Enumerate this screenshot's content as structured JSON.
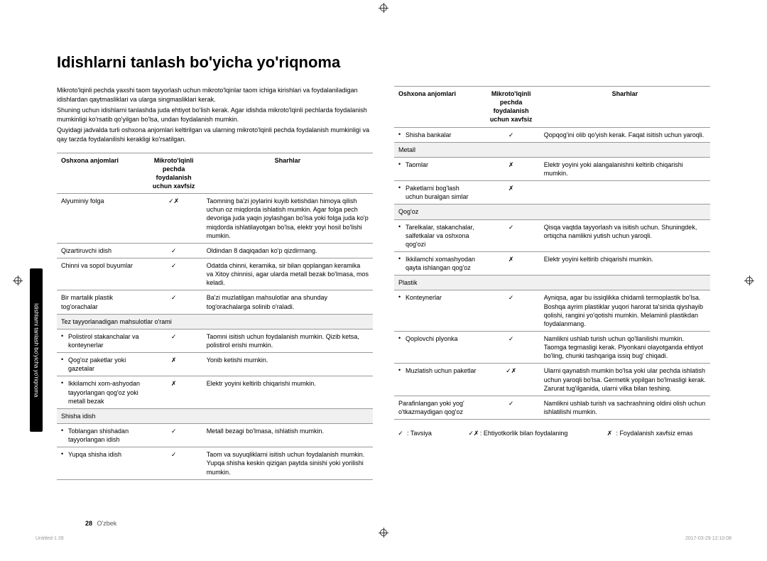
{
  "title": "Idishlarni tanlash bo'yicha yo'riqnoma",
  "sideTab": "Idishlarni tanlash bo'yicha yo'riqnoma",
  "intro": [
    "Mikroto'lqinli pechda yaxshi taom tayyorlash uchun mikroto'lqinlar taom ichiga kirishlari va foydalaniladigan idishlardan qaytmasliklari va ularga singmasliklari kerak.",
    "Shuning uchun idishlarni tanlashda juda ehtiyot bo'lish kerak. Agar idishda mikroto'lqinli pechlarda foydalanish mumkinligi ko'rsatib qo'yilgan bo'lsa, undan foydalanish mumkin.",
    "Quyidagi jadvalda turli oshxona anjomlari keltirilgan va ularning mikroto'lqinli pechda foydalanish mumkinligi va qay tarzda foydalanilishi kerakligi ko'rsatilgan."
  ],
  "headers": {
    "item": "Oshxona anjomlari",
    "safe": "Mikroto'lqinli pechda foydalanish uchun xavfsiz",
    "remarks": "Sharhlar"
  },
  "tableLeft": [
    {
      "item": "Alyuminiy folga",
      "safe": "✓✗",
      "remarks": "Taomning ba'zi joylarini kuyib ketishdan himoya qilish uchun oz miqdorda ishlatish mumkin. Agar folga pech devoriga juda yaqin joylashgan bo'lsa yoki folga juda ko'p miqdorda ishlatilayotgan bo'lsa, elektr yoyi hosil bo'lishi mumkin."
    },
    {
      "item": "Qizartiruvchi idish",
      "safe": "✓",
      "remarks": "Oldindan 8 daqiqadan ko'p qizdirmang."
    },
    {
      "item": "Chinni va sopol buyumlar",
      "safe": "✓",
      "remarks": "Odatda chinni, keramika, sir bilan qoplangan keramika va Xitoy chinnisi, agar ularda metall bezak bo'lmasa, mos keladi."
    },
    {
      "item": "Bir martalik plastik tog'orachalar",
      "safe": "✓",
      "remarks": "Ba'zi muzlatilgan mahsulotlar ana shunday tog'orachalarga solinib o'raladi."
    },
    {
      "section": "Tez tayyorlanadigan mahsulotlar o'rami"
    },
    {
      "item": "Polistirol stakanchalar va konteynerlar",
      "bullet": true,
      "safe": "✓",
      "remarks": "Taomni isitish uchun foydalanish mumkin. Qizib ketsa, polistirol erishi mumkin."
    },
    {
      "item": "Qog'oz paketlar yoki gazetalar",
      "bullet": true,
      "safe": "✗",
      "remarks": "Yonib ketishi mumkin."
    },
    {
      "item": "Ikkilamchi xom-ashyodan tayyorlangan qog'oz yoki metall bezak",
      "bullet": true,
      "safe": "✗",
      "remarks": "Elektr yoyini keltirib chiqarishi mumkin."
    },
    {
      "section": "Shisha idish"
    },
    {
      "item": "Toblangan shishadan tayyorlangan idish",
      "bullet": true,
      "safe": "✓",
      "remarks": "Metall bezagi bo'lmasa, ishlatish mumkin."
    },
    {
      "item": "Yupqa shisha idish",
      "bullet": true,
      "safe": "✓",
      "remarks": "Taom va suyuqliklarni isitish uchun foydalanish mumkin. Yupqa shisha keskin qizigan paytda sinishi yoki yorilishi mumkin."
    }
  ],
  "tableRight": [
    {
      "item": "Shisha bankalar",
      "bullet": true,
      "safe": "✓",
      "remarks": "Qopqog'ini olib qo'yish kerak. Faqat isitish uchun yaroqli."
    },
    {
      "section": "Metall"
    },
    {
      "item": "Taomlar",
      "bullet": true,
      "safe": "✗",
      "remarks": "Elektr yoyini yoki alangalanishni keltirib chiqarishi mumkin."
    },
    {
      "item": "Paketlarni bog'lash uchun buralgan simlar",
      "bullet": true,
      "safe": "✗",
      "remarks": ""
    },
    {
      "section": "Qog'oz"
    },
    {
      "item": "Tarelkalar, stakanchalar, salfetkalar va oshxona qog'ozi",
      "bullet": true,
      "safe": "✓",
      "remarks": "Qisqa vaqtda tayyorlash va isitish uchun. Shuningdek, ortiqcha namlikni yutish uchun yaroqli."
    },
    {
      "item": "Ikkilamchi xomashyodan qayta ishlangan qog'oz",
      "bullet": true,
      "safe": "✗",
      "remarks": "Elektr yoyini keltirib chiqarishi mumkin."
    },
    {
      "section": "Plastik"
    },
    {
      "item": "Konteynerlar",
      "bullet": true,
      "safe": "✓",
      "remarks": "Ayniqsa, agar bu issiqlikka chidamli termoplastik bo'lsa. Boshqa ayrim plastiklar yuqori harorat ta'sirida qiyshayib qolishi, rangini yo'qotishi mumkin. Melaminli plastikdan foydalanmang."
    },
    {
      "item": "Qoplovchi plyonka",
      "bullet": true,
      "safe": "✓",
      "remarks": "Namlikni ushlab turish uchun qo'llanilishi mumkin. Taomga tegmasligi kerak. Plyonkani olayotganda ehtiyot bo'ling, chunki tashqariga issiq bug' chiqadi."
    },
    {
      "item": "Muzlatish uchun paketlar",
      "bullet": true,
      "safe": "✓✗",
      "remarks": "Ularni qaynatish mumkin bo'lsa yoki ular pechda ishlatish uchun yaroqli bo'lsa. Germetik yopilgan bo'lmasligi kerak. Zarurat tug'ilganida, ularni vilka bilan teshing."
    },
    {
      "item": "Parafinlangan yoki yog' o'tkazmaydigan qog'oz",
      "safe": "✓",
      "remarks": "Namlikni ushlab turish va sachrashning oldini olish uchun ishlatilishi mumkin."
    }
  ],
  "legend": {
    "rec": ": Tavsiya",
    "care": ": Ehtiyotkorlik bilan foydalaning",
    "unsafe": ": Foydalanish xavfsiz emas"
  },
  "footer": {
    "page": "28",
    "lang": "O'zbek"
  },
  "meta": {
    "left": "Untitled-1   28",
    "right": "2017-03-29   12:10:08"
  }
}
